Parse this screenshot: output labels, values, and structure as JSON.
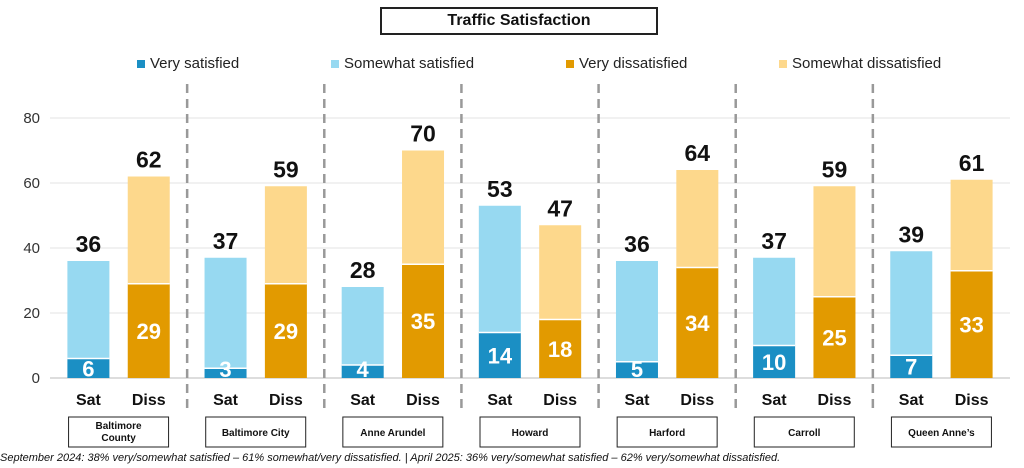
{
  "chart_data": {
    "type": "bar",
    "title": "Traffic Satisfaction",
    "ylim": [
      0,
      80
    ],
    "yticks": [
      0,
      20,
      40,
      60,
      80
    ],
    "grid": true,
    "legend_placement": "top",
    "legend": [
      {
        "name": "Very satisfied",
        "color": "#1B8FC4"
      },
      {
        "name": "Somewhat satisfied",
        "color": "#97D9F1"
      },
      {
        "name": "Very dissatisfied",
        "color": "#E29A00"
      },
      {
        "name": "Somewhat dissatisfied",
        "color": "#FDD88C"
      }
    ],
    "bar_labels": [
      "Sat",
      "Diss"
    ],
    "groups": [
      {
        "name": "Baltimore County",
        "sat_total": 36,
        "sat_very": 6,
        "diss_total": 62,
        "diss_very": 29
      },
      {
        "name": "Baltimore City",
        "sat_total": 37,
        "sat_very": 3,
        "diss_total": 59,
        "diss_very": 29
      },
      {
        "name": "Anne Arundel",
        "sat_total": 28,
        "sat_very": 4,
        "diss_total": 70,
        "diss_very": 35
      },
      {
        "name": "Howard",
        "sat_total": 53,
        "sat_very": 14,
        "diss_total": 47,
        "diss_very": 18
      },
      {
        "name": "Harford",
        "sat_total": 36,
        "sat_very": 5,
        "diss_total": 64,
        "diss_very": 34
      },
      {
        "name": "Carroll",
        "sat_total": 37,
        "sat_very": 10,
        "diss_total": 59,
        "diss_very": 25
      },
      {
        "name": "Queen Anne’s",
        "sat_total": 39,
        "sat_very": 7,
        "diss_total": 61,
        "diss_very": 33
      }
    ],
    "footnote": "September 2024: 38% very/somewhat satisfied – 61% somewhat/very dissatisfied. | April 2025: 36% very/somewhat satisfied – 62% very/somewhat dissatisfied."
  }
}
